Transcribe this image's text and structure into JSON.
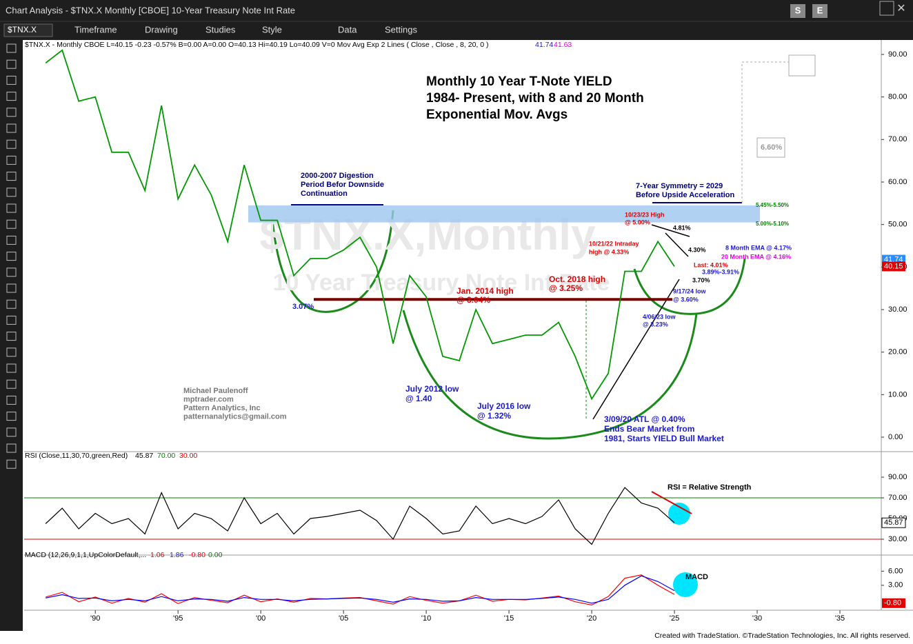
{
  "window": {
    "title": "Chart Analysis - $TNX.X Monthly [CBOE] 10-Year Treasury Note Int Rate",
    "buttons": [
      "S",
      "E"
    ]
  },
  "toolbar": {
    "symbol": "$TNX.X",
    "items": [
      "Timeframe",
      "Drawing",
      "Studies",
      "Style",
      "Data",
      "Settings"
    ]
  },
  "chart_data": [
    {
      "type": "line",
      "readout_text": "$TNX.X - Monthly  CBOE  L=40.15  -0.23  -0.57%  B=0.00  A=0.00  O=40.13  Hi=40.19  Lo=40.09  V=0  Mov Avg Exp 2 Lines ( Close , Close , 8, 20,  0 )",
      "ema_readout": [
        41.74,
        41.63
      ],
      "title_lines": [
        "Monthly 10 Year T-Note YIELD",
        "1984- Present, with 8 and 20 Month",
        "Exponential Mov. Avgs"
      ],
      "watermark": [
        "$TNX.X,Monthly",
        "10 Year Treasury Note Int Rate"
      ],
      "x": [
        1987,
        1988,
        1989,
        1990,
        1991,
        1992,
        1993,
        1994,
        1995,
        1996,
        1997,
        1998,
        1999,
        2000,
        2001,
        2002,
        2003,
        2004,
        2005,
        2006,
        2007,
        2008,
        2009,
        2010,
        2011,
        2012,
        2013,
        2014,
        2015,
        2016,
        2017,
        2018,
        2019,
        2020,
        2021,
        2022,
        2023,
        2024,
        2025
      ],
      "values": [
        88,
        91,
        79,
        80,
        67,
        67,
        58,
        78,
        56,
        64,
        57,
        46,
        64,
        51,
        51,
        38,
        42,
        42,
        44,
        47,
        40,
        22,
        38,
        33,
        19,
        18,
        30,
        22,
        23,
        24,
        24,
        27,
        19,
        9,
        15,
        39,
        39,
        46,
        40.15
      ],
      "color": "#009900",
      "resistance_zone": [
        50.5,
        54.5
      ],
      "support_level": 32.4,
      "price_markers": [
        {
          "value": 41.74,
          "color": "#2a8cff"
        },
        {
          "value": 40.15,
          "color": "#e00000"
        }
      ],
      "xlim": [
        1985.7,
        2037.5
      ],
      "xticks": [
        {
          "value": 1990,
          "label": "'90"
        },
        {
          "value": 1995,
          "label": "'95"
        },
        {
          "value": 2000,
          "label": "'00"
        },
        {
          "value": 2005,
          "label": "'05"
        },
        {
          "value": 2010,
          "label": "'10"
        },
        {
          "value": 2015,
          "label": "'15"
        },
        {
          "value": 2020,
          "label": "'20"
        },
        {
          "value": 2025,
          "label": "'25"
        },
        {
          "value": 2030,
          "label": "'30"
        },
        {
          "value": 2035,
          "label": "'35"
        }
      ],
      "ylim": [
        -3.4,
        93.4
      ],
      "yticks": [
        {
          "value": 0,
          "label": "0.00"
        },
        {
          "value": 10,
          "label": "10.00"
        },
        {
          "value": 20,
          "label": "20.00"
        },
        {
          "value": 30,
          "label": "30.00"
        },
        {
          "value": 40,
          "label": "40.00"
        },
        {
          "value": 50,
          "label": "50.00"
        },
        {
          "value": 60,
          "label": "60.00"
        },
        {
          "value": 70,
          "label": "70.00"
        },
        {
          "value": 80,
          "label": "80.00"
        },
        {
          "value": 90,
          "label": "90.00"
        }
      ],
      "annotations": [
        {
          "text": "2000-2007 Digestion",
          "color": "#000080"
        },
        {
          "text": "Period Befor Downside",
          "color": "#000080"
        },
        {
          "text": "Continuation",
          "color": "#000080"
        },
        {
          "text": "3.07%",
          "color": "#1a1ad0"
        },
        {
          "text": "Jan. 2014 high",
          "color": "#e00000"
        },
        {
          "text": "@ 3.04%",
          "color": "#e00000"
        },
        {
          "text": "Oct. 2018 high",
          "color": "#e00000"
        },
        {
          "text": "@ 3.25%",
          "color": "#e00000"
        },
        {
          "text": "July 2012 low",
          "color": "#1a1ad0"
        },
        {
          "text": "@ 1.40",
          "color": "#1a1ad0"
        },
        {
          "text": "July 2016 low",
          "color": "#1a1ad0"
        },
        {
          "text": "@ 1.32%",
          "color": "#1a1ad0"
        },
        {
          "text": "3/09/20 ATL @ 0.40%",
          "color": "#1a1ad0"
        },
        {
          "text": "Ends Bear Market from",
          "color": "#1a1ad0"
        },
        {
          "text": "1981, Starts YIELD Bull Market",
          "color": "#1a1ad0"
        },
        {
          "text": "7-Year Symmetry = 2029",
          "color": "#000080"
        },
        {
          "text": "Before Upside Acceleration",
          "color": "#000080"
        },
        {
          "text": "5.45%-5.50%",
          "color": "#008000"
        },
        {
          "text": "5.00%-5.10%",
          "color": "#008000"
        },
        {
          "text": "10/23/23 High",
          "color": "#e00000"
        },
        {
          "text": "@ 5.00%",
          "color": "#e00000"
        },
        {
          "text": "10/21/22 Intraday",
          "color": "#e00000"
        },
        {
          "text": "high @ 4.33%",
          "color": "#e00000"
        },
        {
          "text": "4.81%",
          "color": "#000000"
        },
        {
          "text": "4.30%",
          "color": "#000000"
        },
        {
          "text": "8 Month EMA @ 4.17%",
          "color": "#1a1ad0"
        },
        {
          "text": "20 Month EMA @ 4.16%",
          "color": "#e000e0"
        },
        {
          "text": "Last: 4.01%",
          "color": "#e00000"
        },
        {
          "text": "3.89%-3.91%",
          "color": "#1a1ad0"
        },
        {
          "text": "3.70%",
          "color": "#000000"
        },
        {
          "text": "9/17/24 low",
          "color": "#1a1ad0"
        },
        {
          "text": "@ 3.60%",
          "color": "#1a1ad0"
        },
        {
          "text": "4/06/23 low",
          "color": "#1a1ad0"
        },
        {
          "text": "@ 3.23%",
          "color": "#1a1ad0"
        },
        {
          "text": "6.60%",
          "color": "#999999"
        }
      ],
      "author": [
        "Michael Paulenoff",
        "mptrader.com",
        "Pattern Analytics, Inc",
        "patternanalytics@gmail.com"
      ]
    },
    {
      "type": "line",
      "readout_text": "RSI (Close,11,30,70,green,Red)",
      "readout": [
        45.87,
        {
          "value": 70,
          "label": "70.00"
        },
        {
          "value": 30,
          "label": "30.00"
        }
      ],
      "values": [
        45,
        60,
        40,
        55,
        45,
        50,
        35,
        75,
        40,
        55,
        50,
        38,
        70,
        45,
        55,
        35,
        50,
        52,
        55,
        58,
        48,
        30,
        62,
        50,
        35,
        38,
        62,
        45,
        50,
        45,
        52,
        68,
        40,
        25,
        55,
        80,
        65,
        60,
        45.87
      ],
      "color": "#000000",
      "levels": [
        {
          "value": 70,
          "color": "#008000"
        },
        {
          "value": 30,
          "color": "#e00000"
        }
      ],
      "ylim": [
        14.7,
        96.7
      ],
      "yticks": [
        {
          "value": 90,
          "label": "90.00"
        },
        {
          "value": 70,
          "label": "70.00"
        },
        {
          "value": 50,
          "label": "50.00"
        },
        {
          "value": 30,
          "label": "30.00"
        }
      ],
      "last_marker": 45.87,
      "annotation": "RSI = Relative Strength"
    },
    {
      "type": "line",
      "readout_text": "MACD (12,26,9,1,1,UpColorDefault,...",
      "readout": [
        1.06,
        1.86,
        {
          "value": -0.8,
          "label": "-0.80"
        },
        {
          "value": 0,
          "label": "0.00"
        }
      ],
      "series": [
        {
          "color": "#ff0000",
          "values": [
            0.5,
            1.5,
            -0.5,
            0.5,
            -0.8,
            0.2,
            -0.6,
            1.2,
            -0.9,
            0.4,
            -0.2,
            -0.7,
            0.9,
            -0.5,
            0.1,
            -0.6,
            0.2,
            0.1,
            0.3,
            0.4,
            -0.3,
            -1.0,
            0.6,
            -0.2,
            -0.8,
            -0.3,
            0.9,
            -0.4,
            0.0,
            -0.1,
            0.3,
            0.7,
            -0.5,
            -1.2,
            0.6,
            4.5,
            5.2,
            3.0,
            1.06
          ]
        },
        {
          "color": "#0000ff",
          "values": [
            0.3,
            1.0,
            0.2,
            0.3,
            -0.3,
            0.0,
            -0.3,
            0.6,
            -0.3,
            0.1,
            0.0,
            -0.4,
            0.4,
            0.0,
            0.0,
            -0.3,
            0.0,
            0.1,
            0.2,
            0.3,
            0.0,
            -0.6,
            0.1,
            0.0,
            -0.4,
            -0.3,
            0.4,
            0.0,
            0.0,
            0.0,
            0.2,
            0.5,
            0.0,
            -0.8,
            0.0,
            3.0,
            5.0,
            3.8,
            1.86
          ]
        }
      ],
      "ylim": [
        -2.3,
        8.4
      ],
      "yticks": [
        {
          "value": 6,
          "label": "6.00"
        },
        {
          "value": 3,
          "label": "3.00"
        }
      ],
      "last_marker": {
        "value": -0.8,
        "label": "-0.80"
      },
      "annotation": "MACD"
    }
  ],
  "footer": "Created with TradeStation. ©TradeStation Technologies, Inc. All rights reserved."
}
